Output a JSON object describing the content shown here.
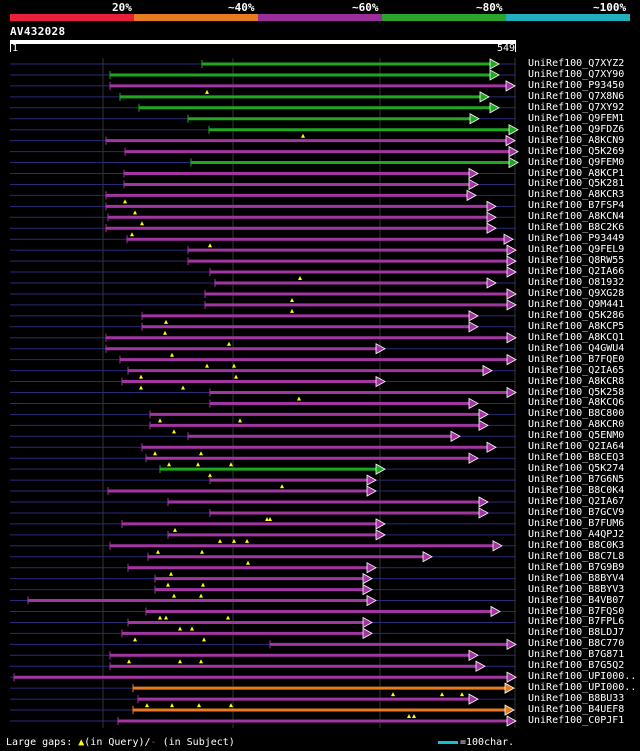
{
  "legend": {
    "colors": [
      "#e8203a",
      "#e87a20",
      "#9a2e9a",
      "#2aa52a",
      "#20b0c0"
    ],
    "labels": [
      "20%",
      "~40%",
      "~60%",
      "~80%",
      "~100%"
    ]
  },
  "query": {
    "title": "AV432028",
    "start": "1",
    "end": "549",
    "length": 549
  },
  "colors": {
    "green": "#1fa81f",
    "purple": "#a235a2",
    "orange": "#e87a1f",
    "yellow": "#ffff00",
    "gap": "#2a2a7a"
  },
  "hits": [
    {
      "label": "UniRef100_Q7XYZ2",
      "s": 202,
      "e": 499,
      "c": "green",
      "gaps": []
    },
    {
      "label": "UniRef100_Q7XY90",
      "s": 110,
      "e": 499,
      "c": "green",
      "gaps": []
    },
    {
      "label": "UniRef100_P93450",
      "s": 110,
      "e": 515,
      "c": "purple",
      "gaps": [
        207
      ]
    },
    {
      "label": "UniRef100_Q7X8N6",
      "s": 120,
      "e": 489,
      "c": "green",
      "gaps": []
    },
    {
      "label": "UniRef100_Q7XY92",
      "s": 139,
      "e": 499,
      "c": "green",
      "gaps": []
    },
    {
      "label": "UniRef100_Q9FEM1",
      "s": 188,
      "e": 479,
      "c": "green",
      "gaps": []
    },
    {
      "label": "UniRef100_Q9FDZ6",
      "s": 209,
      "e": 518,
      "c": "green",
      "gaps": [
        303
      ]
    },
    {
      "label": "UniRef100_A8KCN9",
      "s": 106,
      "e": 515,
      "c": "purple",
      "gaps": []
    },
    {
      "label": "UniRef100_Q5K269",
      "s": 125,
      "e": 518,
      "c": "purple",
      "gaps": []
    },
    {
      "label": "UniRef100_Q9FEM0",
      "s": 191,
      "e": 518,
      "c": "green",
      "gaps": []
    },
    {
      "label": "UniRef100_A8KCP1",
      "s": 124,
      "e": 478,
      "c": "purple",
      "gaps": []
    },
    {
      "label": "UniRef100_Q5K281",
      "s": 124,
      "e": 478,
      "c": "purple",
      "gaps": []
    },
    {
      "label": "UniRef100_A8KCR3",
      "s": 106,
      "e": 476,
      "c": "purple",
      "gaps": [
        125
      ]
    },
    {
      "label": "UniRef100_B7FSP4",
      "s": 106,
      "e": 496,
      "c": "purple",
      "gaps": [
        135
      ]
    },
    {
      "label": "UniRef100_A8KCN4",
      "s": 108,
      "e": 496,
      "c": "purple",
      "gaps": [
        142
      ]
    },
    {
      "label": "UniRef100_B8C2K6",
      "s": 106,
      "e": 496,
      "c": "purple",
      "gaps": [
        132
      ]
    },
    {
      "label": "UniRef100_P93449",
      "s": 127,
      "e": 513,
      "c": "purple",
      "gaps": [
        210
      ]
    },
    {
      "label": "UniRef100_Q9FEL9",
      "s": 188,
      "e": 516,
      "c": "purple",
      "gaps": []
    },
    {
      "label": "UniRef100_Q8RW55",
      "s": 188,
      "e": 516,
      "c": "purple",
      "gaps": []
    },
    {
      "label": "UniRef100_Q2IA66",
      "s": 210,
      "e": 516,
      "c": "purple",
      "gaps": [
        300
      ]
    },
    {
      "label": "UniRef100_O81932",
      "s": 215,
      "e": 496,
      "c": "purple",
      "gaps": []
    },
    {
      "label": "UniRef100_Q9XG28",
      "s": 205,
      "e": 516,
      "c": "purple",
      "gaps": [
        292
      ]
    },
    {
      "label": "UniRef100_Q9M441",
      "s": 205,
      "e": 516,
      "c": "purple",
      "gaps": [
        292
      ]
    },
    {
      "label": "UniRef100_Q5K286",
      "s": 142,
      "e": 478,
      "c": "purple",
      "gaps": [
        166
      ]
    },
    {
      "label": "UniRef100_A8KCP5",
      "s": 142,
      "e": 478,
      "c": "purple",
      "gaps": [
        165
      ]
    },
    {
      "label": "UniRef100_A8KCQ1",
      "s": 106,
      "e": 516,
      "c": "purple",
      "gaps": [
        229
      ]
    },
    {
      "label": "UniRef100_Q4GWU4",
      "s": 106,
      "e": 385,
      "c": "purple",
      "gaps": [
        172
      ]
    },
    {
      "label": "UniRef100_B7FQE0",
      "s": 120,
      "e": 516,
      "c": "purple",
      "gaps": [
        207,
        234
      ]
    },
    {
      "label": "UniRef100_Q2IA65",
      "s": 128,
      "e": 492,
      "c": "purple",
      "gaps": [
        141,
        236
      ]
    },
    {
      "label": "UniRef100_A8KCR8",
      "s": 122,
      "e": 385,
      "c": "purple",
      "gaps": [
        141,
        183
      ]
    },
    {
      "label": "UniRef100_Q5K258",
      "s": 210,
      "e": 516,
      "c": "purple",
      "gaps": [
        299
      ]
    },
    {
      "label": "UniRef100_A8KCQ6",
      "s": 210,
      "e": 478,
      "c": "purple",
      "gaps": []
    },
    {
      "label": "UniRef100_B8C800",
      "s": 150,
      "e": 488,
      "c": "purple",
      "gaps": [
        160,
        240
      ]
    },
    {
      "label": "UniRef100_A8KCR0",
      "s": 150,
      "e": 488,
      "c": "purple",
      "gaps": [
        174
      ]
    },
    {
      "label": "UniRef100_Q5ENM0",
      "s": 188,
      "e": 460,
      "c": "purple",
      "gaps": []
    },
    {
      "label": "UniRef100_Q2IA64",
      "s": 142,
      "e": 496,
      "c": "purple",
      "gaps": [
        155,
        201
      ]
    },
    {
      "label": "UniRef100_B8CEQ3",
      "s": 146,
      "e": 478,
      "c": "purple",
      "gaps": [
        169,
        198,
        231
      ]
    },
    {
      "label": "UniRef100_Q5K274",
      "s": 160,
      "e": 385,
      "c": "green",
      "gaps": [
        210
      ]
    },
    {
      "label": "UniRef100_B7G6N5",
      "s": 210,
      "e": 376,
      "c": "purple",
      "gaps": [
        282
      ]
    },
    {
      "label": "UniRef100_B8C0K4",
      "s": 108,
      "e": 376,
      "c": "purple",
      "gaps": []
    },
    {
      "label": "UniRef100_Q2IA67",
      "s": 168,
      "e": 488,
      "c": "purple",
      "gaps": []
    },
    {
      "label": "UniRef100_B7GCV9",
      "s": 210,
      "e": 488,
      "c": "purple",
      "gaps": [
        267,
        270
      ]
    },
    {
      "label": "UniRef100_B7FUM6",
      "s": 122,
      "e": 385,
      "c": "purple",
      "gaps": [
        175
      ]
    },
    {
      "label": "UniRef100_A4QPJ2",
      "s": 168,
      "e": 385,
      "c": "purple",
      "gaps": [
        220,
        234,
        247
      ]
    },
    {
      "label": "UniRef100_B8C0K3",
      "s": 110,
      "e": 502,
      "c": "purple",
      "gaps": [
        158,
        202
      ]
    },
    {
      "label": "UniRef100_B8C7L8",
      "s": 148,
      "e": 432,
      "c": "purple",
      "gaps": [
        248
      ]
    },
    {
      "label": "UniRef100_B7G9B9",
      "s": 128,
      "e": 376,
      "c": "purple",
      "gaps": [
        171
      ]
    },
    {
      "label": "UniRef100_B8BYV4",
      "s": 155,
      "e": 372,
      "c": "purple",
      "gaps": [
        168,
        203
      ]
    },
    {
      "label": "UniRef100_B8BYV3",
      "s": 155,
      "e": 372,
      "c": "purple",
      "gaps": [
        174,
        201
      ]
    },
    {
      "label": "UniRef100_B4VB07",
      "s": 28,
      "e": 376,
      "c": "purple",
      "gaps": []
    },
    {
      "label": "UniRef100_B7FQS0",
      "s": 146,
      "e": 500,
      "c": "purple",
      "gaps": [
        160,
        166,
        228
      ]
    },
    {
      "label": "UniRef100_B7FPL6",
      "s": 128,
      "e": 372,
      "c": "purple",
      "gaps": [
        180,
        192
      ]
    },
    {
      "label": "UniRef100_B8LDJ7",
      "s": 122,
      "e": 372,
      "c": "purple",
      "gaps": [
        135,
        204
      ]
    },
    {
      "label": "UniRef100_B8C770",
      "s": 270,
      "e": 516,
      "c": "purple",
      "gaps": []
    },
    {
      "label": "UniRef100_B7G871",
      "s": 110,
      "e": 478,
      "c": "purple",
      "gaps": [
        129,
        180,
        201
      ]
    },
    {
      "label": "UniRef100_B7G5Q2",
      "s": 110,
      "e": 485,
      "c": "purple",
      "gaps": []
    },
    {
      "label": "UniRef100_UPI000..",
      "s": 14,
      "e": 516,
      "c": "purple",
      "gaps": []
    },
    {
      "label": "UniRef100_UPI000..",
      "s": 133,
      "e": 514,
      "c": "orange",
      "gaps": [
        393,
        442,
        462
      ]
    },
    {
      "label": "UniRef100_B8BU33",
      "s": 138,
      "e": 478,
      "c": "purple",
      "gaps": [
        147,
        172,
        199,
        231
      ]
    },
    {
      "label": "UniRef100_B4UEF8",
      "s": 133,
      "e": 514,
      "c": "orange",
      "gaps": [
        409,
        414
      ]
    },
    {
      "label": "UniRef100_C0PJF1",
      "s": 118,
      "e": 516,
      "c": "purple",
      "gaps": []
    }
  ],
  "footer": {
    "gaps_label": "Large gaps: ",
    "in_query": "(in Query)/",
    "in_subject": "(in Subject)",
    "scale": "=100char."
  }
}
